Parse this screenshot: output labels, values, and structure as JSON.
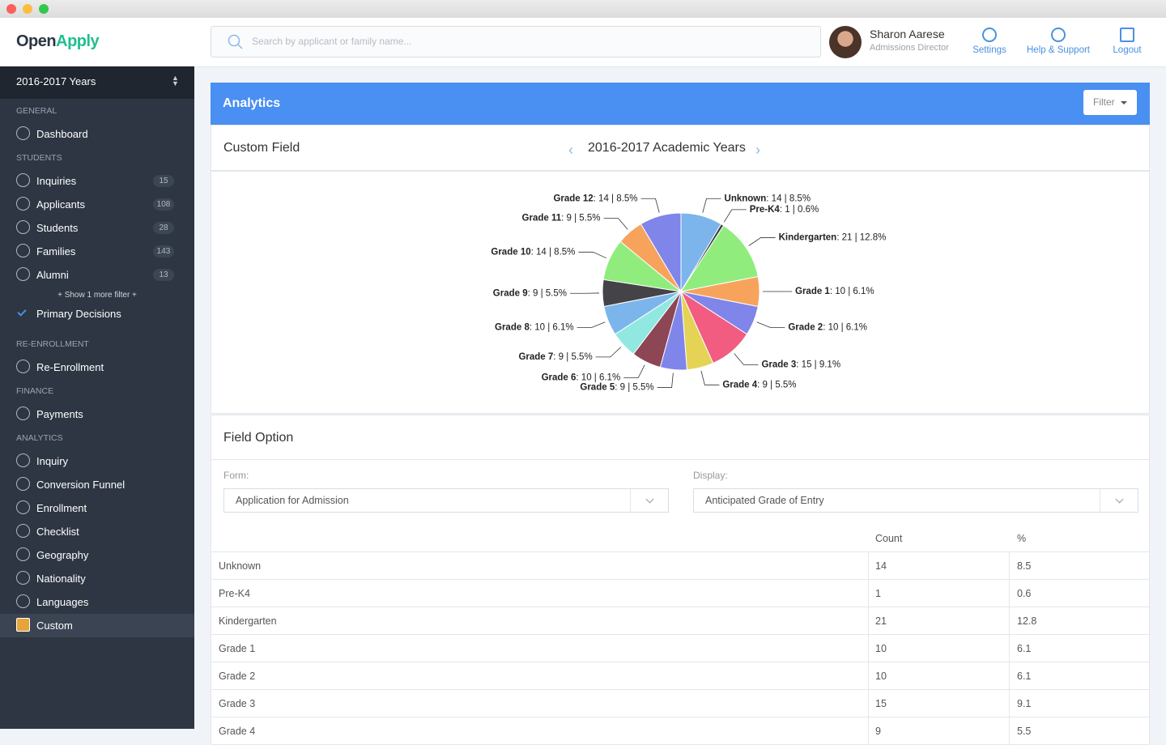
{
  "header": {
    "brand": [
      "Open",
      "Apply"
    ],
    "search_placeholder": "Search by applicant or family name...",
    "user": {
      "name": "Sharon Aarese",
      "role": "Admissions Director"
    },
    "actions": [
      "Settings",
      "Help & Support",
      "Logout"
    ]
  },
  "sidebar": {
    "year": "2016-2017 Years",
    "sections": [
      {
        "title": "GENERAL",
        "items": [
          {
            "label": "Dashboard"
          }
        ]
      },
      {
        "title": "STUDENTS",
        "items": [
          {
            "label": "Inquiries",
            "count": 15
          },
          {
            "label": "Applicants",
            "count": 108
          },
          {
            "label": "Students",
            "count": 28
          },
          {
            "label": "Families",
            "count": 143
          },
          {
            "label": "Alumni",
            "count": 13
          }
        ],
        "more": "+ Show 1 more filter +",
        "extra": "Primary Decisions"
      },
      {
        "title": "RE-ENROLLMENT",
        "items": [
          {
            "label": "Re-Enrollment"
          }
        ]
      },
      {
        "title": "FINANCE",
        "items": [
          {
            "label": "Payments"
          }
        ]
      },
      {
        "title": "ANALYTICS",
        "items": [
          {
            "label": "Inquiry"
          },
          {
            "label": "Conversion Funnel"
          },
          {
            "label": "Enrollment"
          },
          {
            "label": "Checklist"
          },
          {
            "label": "Geography"
          },
          {
            "label": "Nationality"
          },
          {
            "label": "Languages"
          },
          {
            "label": "Custom",
            "active": true
          }
        ]
      }
    ]
  },
  "panel": {
    "title": "Analytics",
    "filter": "Filter"
  },
  "custom_field": {
    "title": "Custom Field",
    "period": "2016-2017 Academic Years"
  },
  "chart_data": {
    "type": "pie",
    "categories": [
      "Unknown",
      "Pre-K4",
      "Kindergarten",
      "Grade 1",
      "Grade 2",
      "Grade 3",
      "Grade 4",
      "Grade 5",
      "Grade 6",
      "Grade 7",
      "Grade 8",
      "Grade 9",
      "Grade 10",
      "Grade 11",
      "Grade 12"
    ],
    "values": [
      14,
      1,
      21,
      10,
      10,
      15,
      9,
      9,
      10,
      9,
      10,
      9,
      14,
      9,
      14
    ],
    "value_labels": [
      ": 14 | 8.5%",
      ": 1 | 0.6%",
      ": 21 | 12.8%",
      ": 10 | 6.1%",
      ": 10 | 6.1%",
      ": 15 | 9.1%",
      ": 9 | 5.5%",
      ": 9 | 5.5%",
      ": 10 | 6.1%",
      ": 9 | 5.5%",
      ": 10 | 6.1%",
      ": 9 | 5.5%",
      ": 14 | 8.5%",
      ": 9 | 5.5%",
      ": 14 | 8.5%"
    ],
    "colors": [
      "#7cb5ec",
      "#434348",
      "#90ed7d",
      "#f7a35c",
      "#8085e9",
      "#f15c80",
      "#e4d354",
      "#8085e9",
      "#8d4653",
      "#91e8e1",
      "#7cb5ec",
      "#434348",
      "#90ed7d",
      "#f7a35c",
      "#8085e9"
    ]
  },
  "field_option": {
    "title": "Field Option",
    "form_label": "Form:",
    "form_value": "Application for Admission",
    "display_label": "Display:",
    "display_value": "Anticipated Grade of Entry"
  },
  "table": {
    "columns": [
      "Count",
      "%"
    ],
    "rows": [
      [
        "Unknown",
        14,
        8.5
      ],
      [
        "Pre-K4",
        1,
        0.6
      ],
      [
        "Kindergarten",
        21,
        12.8
      ],
      [
        "Grade 1",
        10,
        6.1
      ],
      [
        "Grade 2",
        10,
        6.1
      ],
      [
        "Grade 3",
        15,
        9.1
      ],
      [
        "Grade 4",
        9,
        5.5
      ]
    ]
  }
}
